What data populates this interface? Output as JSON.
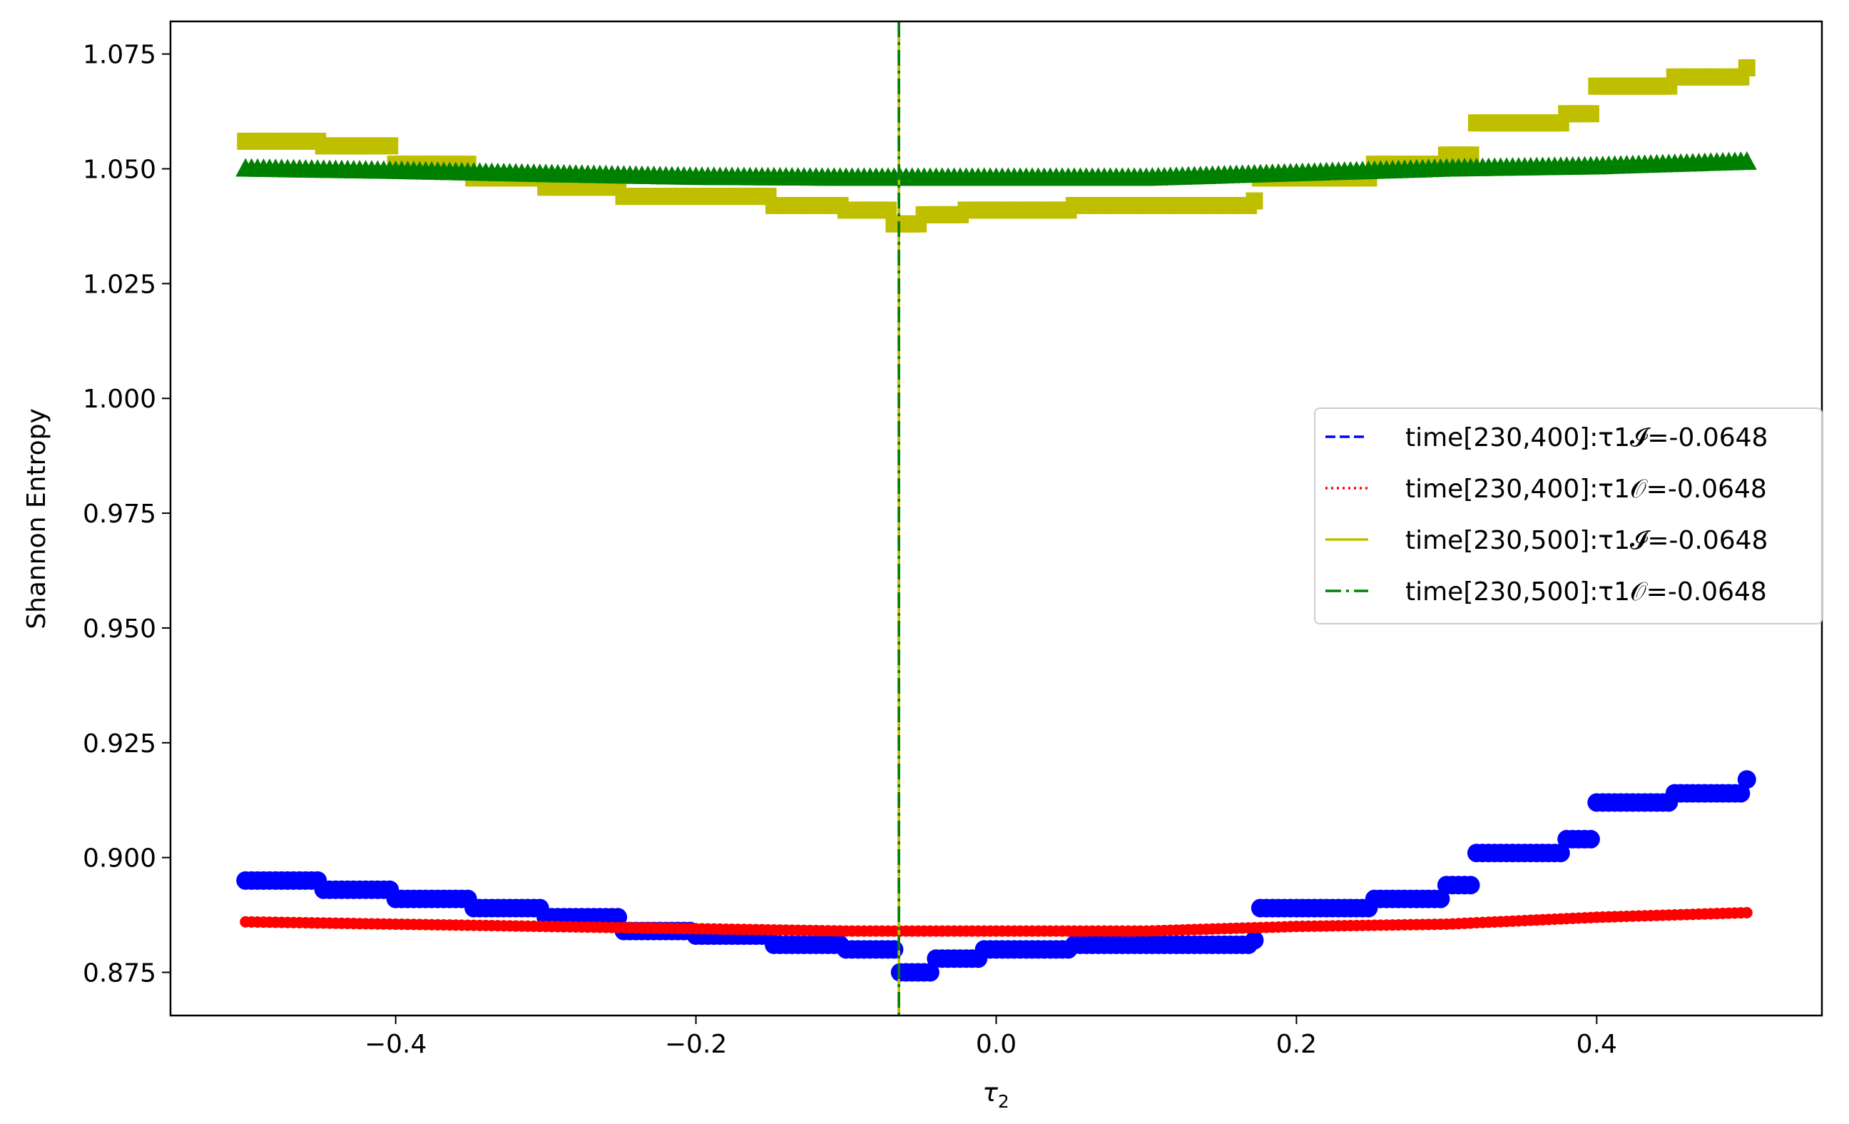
{
  "chart_data": {
    "type": "scatter",
    "xlabel": "τ₂",
    "ylabel": "Shannon Entropy",
    "xlim": [
      -0.55,
      0.55
    ],
    "ylim": [
      0.8656,
      1.0821
    ],
    "xticks": [
      -0.4,
      -0.2,
      0.0,
      0.2,
      0.4
    ],
    "xtick_labels": [
      "−0.4",
      "−0.2",
      "0.0",
      "0.2",
      "0.4"
    ],
    "yticks": [
      0.875,
      0.9,
      0.925,
      0.95,
      0.975,
      1.0,
      1.025,
      1.05,
      1.075
    ],
    "ytick_labels": [
      "0.875",
      "0.900",
      "0.925",
      "0.950",
      "0.975",
      "1.000",
      "1.025",
      "1.050",
      "1.075"
    ],
    "grid": false,
    "legend_position": "center-right",
    "vertical_line_x": -0.0648,
    "series": [
      {
        "name": "time[230,400]:τ1𝓘=-0.0648",
        "legend_style": "dashed",
        "marker": "circle",
        "color": "#0000ff",
        "x": [
          -0.5,
          -0.45,
          -0.4,
          -0.35,
          -0.3,
          -0.25,
          -0.2,
          -0.15,
          -0.1,
          -0.065,
          -0.04,
          -0.01,
          0.05,
          0.1,
          0.17,
          0.175,
          0.25,
          0.3,
          0.32,
          0.35,
          0.38,
          0.4,
          0.45,
          0.5
        ],
        "y": [
          0.895,
          0.893,
          0.891,
          0.889,
          0.887,
          0.884,
          0.883,
          0.881,
          0.88,
          0.875,
          0.878,
          0.88,
          0.881,
          0.881,
          0.882,
          0.889,
          0.891,
          0.894,
          0.901,
          0.901,
          0.904,
          0.912,
          0.914,
          0.917
        ]
      },
      {
        "name": "time[230,400]:τ1𝒪=-0.0648",
        "legend_style": "dotted",
        "marker": "circle",
        "color": "#ff0000",
        "x": [
          -0.5,
          -0.4,
          -0.3,
          -0.2,
          -0.1,
          -0.065,
          0.0,
          0.1,
          0.2,
          0.3,
          0.4,
          0.5
        ],
        "y": [
          0.886,
          0.8855,
          0.885,
          0.8845,
          0.884,
          0.884,
          0.884,
          0.884,
          0.885,
          0.8855,
          0.887,
          0.888
        ]
      },
      {
        "name": "time[230,500]:τ1𝓘=-0.0648",
        "legend_style": "solid",
        "marker": "square",
        "color": "#bfbf00",
        "x": [
          -0.5,
          -0.45,
          -0.4,
          -0.35,
          -0.3,
          -0.25,
          -0.2,
          -0.15,
          -0.1,
          -0.07,
          -0.05,
          -0.02,
          0.05,
          0.1,
          0.17,
          0.175,
          0.25,
          0.3,
          0.32,
          0.38,
          0.4,
          0.45,
          0.5
        ],
        "y": [
          1.056,
          1.055,
          1.051,
          1.048,
          1.046,
          1.044,
          1.044,
          1.042,
          1.041,
          1.038,
          1.04,
          1.041,
          1.042,
          1.042,
          1.043,
          1.048,
          1.051,
          1.053,
          1.06,
          1.062,
          1.068,
          1.07,
          1.072
        ]
      },
      {
        "name": "time[230,500]:τ1𝒪=-0.0648",
        "legend_style": "dashdot",
        "marker": "triangle",
        "color": "#008000",
        "x": [
          -0.5,
          -0.4,
          -0.3,
          -0.2,
          -0.1,
          -0.065,
          0.0,
          0.1,
          0.2,
          0.3,
          0.4,
          0.5
        ],
        "y": [
          1.05,
          1.0495,
          1.0488,
          1.0482,
          1.048,
          1.048,
          1.048,
          1.048,
          1.049,
          1.05,
          1.0505,
          1.0515
        ]
      }
    ]
  }
}
